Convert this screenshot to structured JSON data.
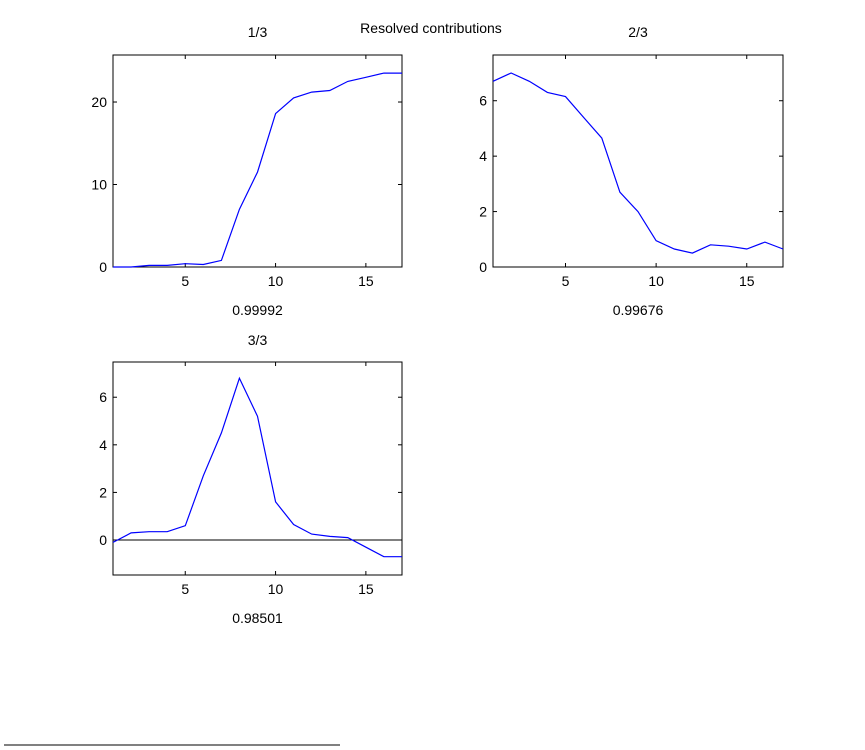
{
  "figure_title": "Resolved contributions",
  "colors": {
    "line": "#0000ff",
    "axes": "#000000",
    "zero_line": "#000000"
  },
  "chart_data": [
    {
      "type": "line",
      "title": "1/3",
      "xlabel": "0.99992",
      "ylabel": "",
      "xlim": [
        1,
        17
      ],
      "ylim": [
        0,
        25.7
      ],
      "xticks": [
        5,
        10,
        15
      ],
      "yticks": [
        0,
        10,
        20
      ],
      "zero_line": false,
      "x": [
        1,
        2,
        3,
        4,
        5,
        6,
        7,
        8,
        9,
        10,
        11,
        12,
        13,
        14,
        15,
        16,
        17
      ],
      "values": [
        0,
        0,
        0.2,
        0.2,
        0.4,
        0.3,
        0.8,
        7,
        11.5,
        18.6,
        20.5,
        21.2,
        21.4,
        22.5,
        23,
        23.5,
        23.5
      ]
    },
    {
      "type": "line",
      "title": "2/3",
      "xlabel": "0.99676",
      "ylabel": "",
      "xlim": [
        1,
        17
      ],
      "ylim": [
        0,
        7.65
      ],
      "xticks": [
        5,
        10,
        15
      ],
      "yticks": [
        0,
        2,
        4,
        6
      ],
      "zero_line": false,
      "x": [
        1,
        2,
        3,
        4,
        5,
        6,
        7,
        8,
        9,
        10,
        11,
        12,
        13,
        14,
        15,
        16,
        17
      ],
      "values": [
        6.7,
        7.0,
        6.7,
        6.3,
        6.15,
        5.4,
        4.65,
        2.7,
        2.0,
        0.95,
        0.65,
        0.5,
        0.8,
        0.75,
        0.65,
        0.9,
        0.65
      ]
    },
    {
      "type": "line",
      "title": "3/3",
      "xlabel": "0.98501",
      "ylabel": "",
      "xlim": [
        1,
        17
      ],
      "ylim": [
        -1.47,
        7.48
      ],
      "xticks": [
        5,
        10,
        15
      ],
      "yticks": [
        0,
        2,
        4,
        6
      ],
      "zero_line": true,
      "x": [
        1,
        2,
        3,
        4,
        5,
        6,
        7,
        8,
        9,
        10,
        11,
        12,
        13,
        14,
        15,
        16,
        17
      ],
      "values": [
        -0.1,
        0.3,
        0.35,
        0.35,
        0.6,
        2.7,
        4.5,
        6.8,
        5.2,
        1.6,
        0.65,
        0.25,
        0.15,
        0.1,
        -0.3,
        -0.7,
        -0.7
      ]
    }
  ]
}
